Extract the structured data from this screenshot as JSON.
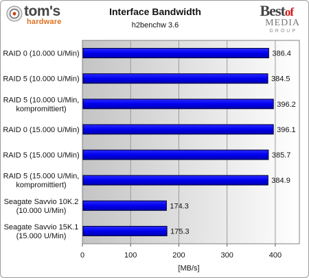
{
  "header": {
    "brand_left_main": "tom's",
    "brand_left_sub": "hardware",
    "brand_right_best": "Best",
    "brand_right_of": "of",
    "brand_right_media": "MEDIA",
    "brand_right_group": "GROUP"
  },
  "chart_data": {
    "type": "bar",
    "orientation": "horizontal",
    "title": "Interface Bandwidth",
    "subtitle": "h2benchw 3.6",
    "xlabel": "[MB/s]",
    "ylabel": "",
    "xlim": [
      0,
      450
    ],
    "xticks": [
      0,
      100,
      200,
      300,
      400
    ],
    "grid": "vertical",
    "categories": [
      [
        "RAID 0 (10.000 U/Min)"
      ],
      [
        "RAID 5 (10.000 U/Min)"
      ],
      [
        "RAID 5 (10.000 U/Min,",
        "kompromittiert)"
      ],
      [
        "RAID 0 (15.000 U/Min)"
      ],
      [
        "RAID 5 (15.000 U/Min)"
      ],
      [
        "RAID 5 (15.000 U/Min,",
        "kompromittiert)"
      ],
      [
        "Seagate Savvio 10K.2",
        "(10.000 U/Min)"
      ],
      [
        "Seagate Savvio 15K.1",
        "(15.000 U/Min)"
      ]
    ],
    "values": [
      386.4,
      384.5,
      396.2,
      396.1,
      385.7,
      384.9,
      174.3,
      175.3
    ],
    "value_labels": [
      "386.4",
      "384.5",
      "396.2",
      "396.1",
      "385.7",
      "384.9",
      "174.3",
      "175.3"
    ],
    "bar_color": "#0000ee"
  }
}
